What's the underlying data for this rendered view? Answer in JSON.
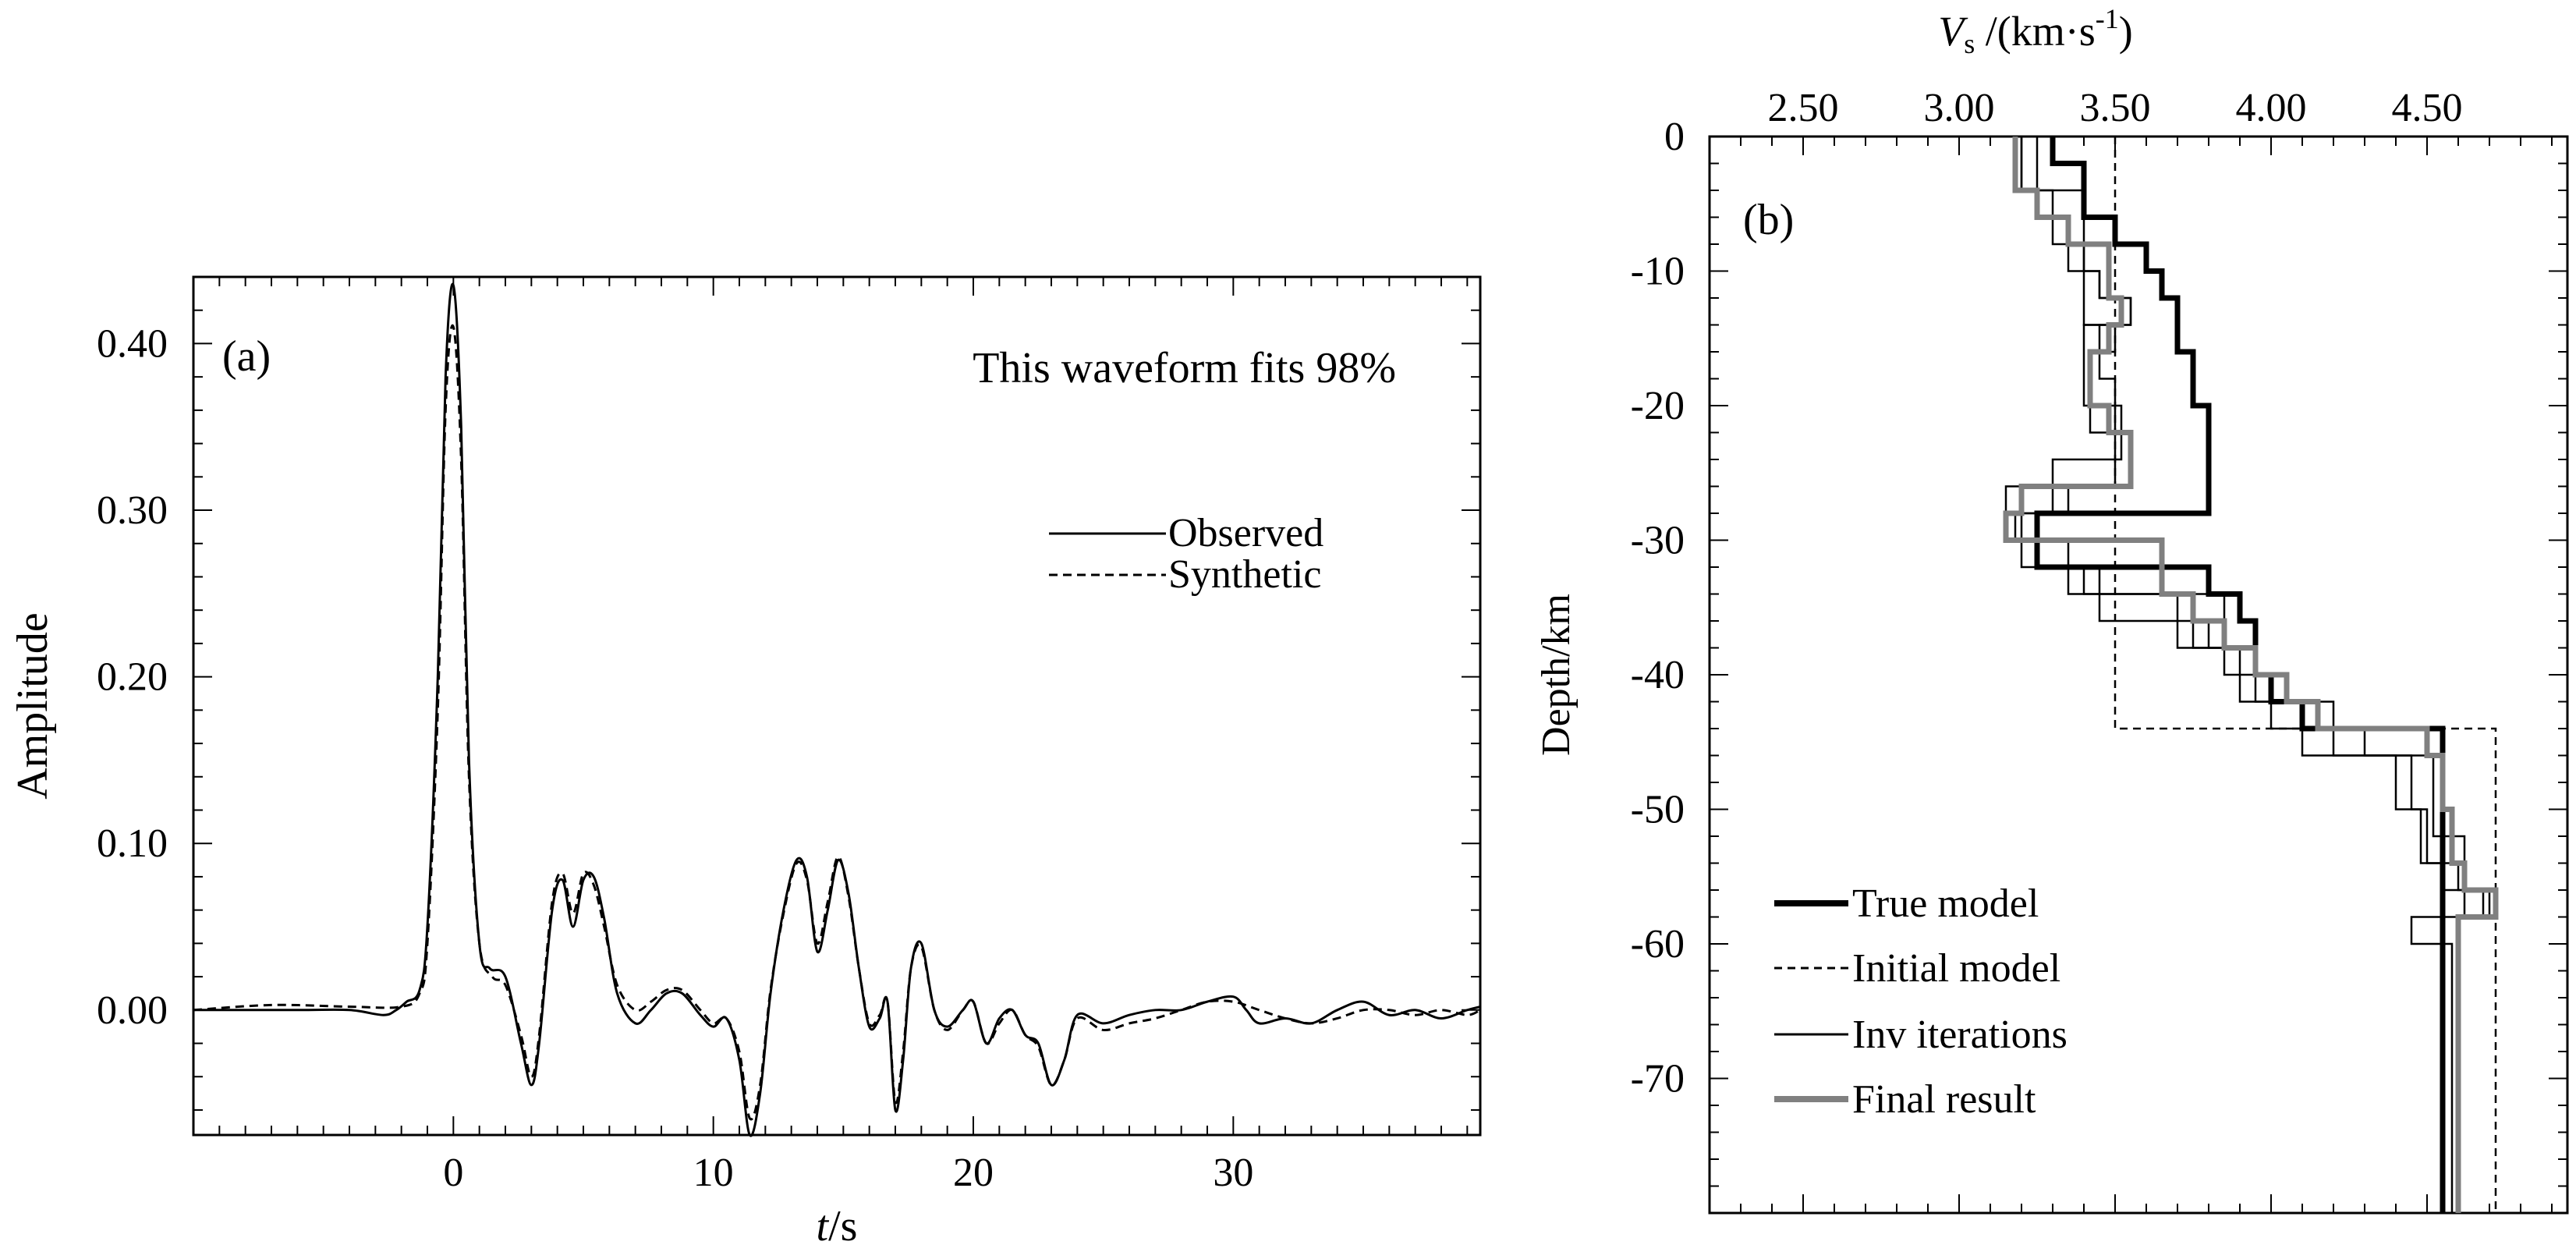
{
  "chart_data": [
    {
      "panel_label": "(a)",
      "type": "line",
      "annotation": "This waveform fits 98%",
      "xlabel": {
        "var": "t",
        "unit": "/s"
      },
      "ylabel": "Amplitude",
      "xlim": [
        -10,
        39.5
      ],
      "ylim": [
        -0.075,
        0.44
      ],
      "xticks": [
        0,
        10,
        20,
        30
      ],
      "xtick_labels": [
        "0",
        "10",
        "20",
        "30"
      ],
      "xtick_minor_step": 1,
      "yticks": [
        0.0,
        0.1,
        0.2,
        0.3,
        0.4
      ],
      "ytick_labels": [
        "0.00",
        "0.10",
        "0.20",
        "0.30",
        "0.40"
      ],
      "ytick_minor_step": 0.02,
      "legend_position": "right",
      "series": [
        {
          "name": "Observed",
          "style": "solid",
          "x": [
            -10,
            -6,
            -4,
            -2.7,
            -2.2,
            -1.8,
            -1.3,
            -1,
            -0.6,
            -0.3,
            0,
            0.3,
            0.6,
            1,
            1.4,
            2,
            2.6,
            3,
            3.3,
            3.8,
            4.2,
            4.6,
            5,
            5.4,
            5.8,
            6.3,
            7,
            7.6,
            8.2,
            8.8,
            9.5,
            10,
            10.5,
            11,
            11.4,
            11.8,
            12.2,
            12.7,
            13.2,
            13.6,
            14,
            14.4,
            14.8,
            15.2,
            15.6,
            16,
            16.4,
            16.7,
            17,
            17.3,
            17.6,
            18,
            18.5,
            19,
            19.6,
            20,
            20.5,
            21,
            21.5,
            22,
            22.5,
            23,
            23.5,
            24,
            25,
            26,
            27,
            28,
            29,
            30,
            30.5,
            31,
            32,
            33,
            34,
            35,
            36,
            37,
            38,
            39,
            39.5
          ],
          "y": [
            0.0,
            0.0,
            0.0,
            -0.003,
            0.0,
            0.005,
            0.012,
            0.05,
            0.2,
            0.38,
            0.435,
            0.35,
            0.15,
            0.04,
            0.025,
            0.02,
            -0.02,
            -0.045,
            -0.02,
            0.06,
            0.078,
            0.05,
            0.078,
            0.08,
            0.055,
            0.01,
            -0.008,
            0.0,
            0.01,
            0.01,
            -0.003,
            -0.01,
            -0.005,
            -0.03,
            -0.075,
            -0.05,
            0.01,
            0.06,
            0.09,
            0.08,
            0.035,
            0.06,
            0.09,
            0.07,
            0.025,
            -0.01,
            -0.005,
            0.005,
            -0.06,
            -0.03,
            0.025,
            0.04,
            0.0,
            -0.01,
            0.0,
            0.005,
            -0.02,
            -0.005,
            0.0,
            -0.015,
            -0.02,
            -0.045,
            -0.03,
            -0.003,
            -0.008,
            -0.003,
            0.0,
            0.0,
            0.005,
            0.008,
            0.0,
            -0.008,
            -0.005,
            -0.008,
            0.0,
            0.005,
            -0.003,
            0.0,
            -0.005,
            0.0,
            0.002
          ]
        },
        {
          "name": "Synthetic",
          "style": "dashed",
          "x": [
            -10,
            -7,
            -4,
            -2,
            -1.3,
            -1,
            -0.6,
            -0.3,
            0,
            0.3,
            0.6,
            1,
            1.5,
            2,
            2.6,
            3,
            3.3,
            3.8,
            4.2,
            4.6,
            5,
            5.4,
            5.8,
            6.3,
            7,
            7.6,
            8.2,
            8.8,
            9.5,
            10,
            10.5,
            11,
            11.4,
            11.8,
            12.2,
            12.7,
            13.2,
            13.6,
            14,
            14.4,
            14.8,
            15.2,
            15.6,
            16,
            16.4,
            16.7,
            17,
            17.3,
            17.6,
            18,
            18.5,
            19,
            19.6,
            20,
            20.5,
            21,
            21.5,
            22,
            22.5,
            23,
            23.5,
            24,
            25,
            26,
            27,
            28,
            29,
            30,
            31,
            32,
            33,
            34,
            35,
            36,
            37,
            38,
            39,
            39.5
          ],
          "y": [
            0.0,
            0.003,
            0.002,
            0.002,
            0.01,
            0.04,
            0.18,
            0.36,
            0.41,
            0.33,
            0.14,
            0.04,
            0.02,
            0.015,
            -0.015,
            -0.04,
            -0.015,
            0.065,
            0.082,
            0.058,
            0.082,
            0.075,
            0.05,
            0.015,
            0.0,
            0.005,
            0.012,
            0.012,
            0.0,
            -0.008,
            -0.005,
            -0.025,
            -0.065,
            -0.045,
            0.012,
            0.058,
            0.088,
            0.078,
            0.04,
            0.065,
            0.092,
            0.068,
            0.025,
            -0.008,
            -0.003,
            0.005,
            -0.055,
            -0.025,
            0.025,
            0.038,
            0.0,
            -0.012,
            0.0,
            0.005,
            -0.02,
            -0.008,
            0.0,
            -0.015,
            -0.022,
            -0.045,
            -0.03,
            -0.005,
            -0.012,
            -0.008,
            -0.005,
            0.0,
            0.005,
            0.005,
            0.0,
            -0.005,
            -0.008,
            -0.005,
            0.0,
            0.0,
            -0.003,
            0.0,
            -0.003,
            0.0
          ]
        }
      ]
    },
    {
      "panel_label": "(b)",
      "type": "line",
      "xlabel": {
        "var": "V",
        "sub": "s",
        "unit_prefix": " /(km·s",
        "unit_exp": "-1",
        "unit_suffix": ")"
      },
      "ylabel": "Depth/km",
      "xlim": [
        2.2,
        4.95
      ],
      "ylim": [
        -80,
        0
      ],
      "x_axis_position": "top",
      "xticks": [
        2.5,
        3.0,
        3.5,
        4.0,
        4.5
      ],
      "xtick_labels": [
        "2.50",
        "3.00",
        "3.50",
        "4.00",
        "4.50"
      ],
      "xtick_minor_step": 0.1,
      "yticks": [
        0,
        -10,
        -20,
        -30,
        -40,
        -50,
        -60,
        -70
      ],
      "ytick_labels": [
        "0",
        "-10",
        "-20",
        "-30",
        "-40",
        "-50",
        "-60",
        "-70"
      ],
      "ytick_minor_step": 2,
      "legend_position": "bottom-left",
      "series": [
        {
          "name": "True model",
          "style": "thick-black",
          "x": [
            3.3,
            3.3,
            3.4,
            3.4,
            3.5,
            3.5,
            3.6,
            3.6,
            3.65,
            3.65,
            3.7,
            3.7,
            3.75,
            3.75,
            3.8,
            3.8,
            3.25,
            3.25,
            3.8,
            3.8,
            3.9,
            3.9,
            3.95,
            3.95,
            4.0,
            4.0,
            4.1,
            4.1,
            4.55,
            4.55
          ],
          "y": [
            0,
            -2,
            -2,
            -6,
            -6,
            -8,
            -8,
            -10,
            -10,
            -12,
            -12,
            -16,
            -16,
            -20,
            -20,
            -28,
            -28,
            -32,
            -32,
            -34,
            -34,
            -36,
            -36,
            -40,
            -40,
            -42,
            -42,
            -44,
            -44,
            -80
          ]
        },
        {
          "name": "Initial model",
          "style": "dashed",
          "x": [
            3.5,
            3.5,
            4.72,
            4.72
          ],
          "y": [
            0,
            -44,
            -44,
            -80
          ]
        },
        {
          "name": "Inv iterations",
          "style": "thin-black",
          "steps": [
            {
              "x": [
                3.2,
                3.2,
                3.3,
                3.3,
                3.4,
                3.4,
                3.45,
                3.45,
                3.55,
                3.55,
                3.45,
                3.45,
                3.5,
                3.5,
                3.55,
                3.55,
                3.35,
                3.35,
                3.18,
                3.18,
                3.25,
                3.25,
                3.4,
                3.4,
                3.85,
                3.85,
                3.75,
                3.75,
                3.85,
                3.85,
                4.0,
                4.0,
                4.3,
                4.3,
                4.45,
                4.45,
                4.5,
                4.5,
                4.55,
                4.55,
                4.62,
                4.62,
                4.45,
                4.45,
                4.58,
                4.58
              ],
              "y": [
                0,
                -4,
                -4,
                -8,
                -8,
                -10,
                -10,
                -12,
                -12,
                -14,
                -14,
                -18,
                -18,
                -22,
                -22,
                -26,
                -26,
                -28,
                -28,
                -30,
                -30,
                -32,
                -32,
                -34,
                -34,
                -36,
                -36,
                -38,
                -38,
                -40,
                -40,
                -44,
                -44,
                -46,
                -46,
                -50,
                -50,
                -54,
                -54,
                -56,
                -56,
                -58,
                -58,
                -60,
                -60,
                -80
              ]
            },
            {
              "x": [
                3.25,
                3.25,
                3.35,
                3.35,
                3.45,
                3.45,
                3.55,
                3.55,
                3.4,
                3.4,
                3.52,
                3.52,
                3.3,
                3.3,
                3.2,
                3.2,
                3.45,
                3.45,
                3.8,
                3.8,
                3.95,
                3.95,
                4.1,
                4.1,
                4.4,
                4.4,
                4.48,
                4.48,
                4.6,
                4.6,
                4.68,
                4.68,
                4.6,
                4.6
              ],
              "y": [
                0,
                -6,
                -6,
                -10,
                -10,
                -12,
                -12,
                -14,
                -14,
                -20,
                -20,
                -24,
                -24,
                -28,
                -28,
                -32,
                -32,
                -36,
                -36,
                -38,
                -38,
                -42,
                -42,
                -46,
                -46,
                -50,
                -50,
                -54,
                -54,
                -56,
                -56,
                -58,
                -58,
                -80
              ]
            },
            {
              "x": [
                3.2,
                3.2,
                3.4,
                3.4,
                3.5,
                3.5,
                3.42,
                3.42,
                3.5,
                3.5,
                3.15,
                3.15,
                3.35,
                3.35,
                3.7,
                3.7,
                3.9,
                3.9,
                4.2,
                4.2,
                4.52,
                4.52,
                4.62,
                4.62,
                4.7,
                4.7,
                4.6,
                4.6
              ],
              "y": [
                0,
                -4,
                -4,
                -14,
                -14,
                -16,
                -16,
                -22,
                -22,
                -26,
                -26,
                -30,
                -30,
                -34,
                -34,
                -38,
                -38,
                -42,
                -42,
                -46,
                -46,
                -52,
                -52,
                -56,
                -56,
                -58,
                -58,
                -80
              ]
            }
          ]
        },
        {
          "name": "Final result",
          "style": "thick-gray",
          "x": [
            3.18,
            3.18,
            3.25,
            3.25,
            3.35,
            3.35,
            3.48,
            3.48,
            3.52,
            3.52,
            3.48,
            3.48,
            3.42,
            3.42,
            3.48,
            3.48,
            3.55,
            3.55,
            3.5,
            3.5,
            3.2,
            3.2,
            3.15,
            3.15,
            3.65,
            3.65,
            3.75,
            3.75,
            3.85,
            3.85,
            3.95,
            3.95,
            4.05,
            4.05,
            4.15,
            4.15,
            4.5,
            4.5,
            4.55,
            4.55,
            4.58,
            4.58,
            4.62,
            4.62,
            4.72,
            4.72,
            4.6,
            4.6
          ],
          "y": [
            0,
            -4,
            -4,
            -6,
            -6,
            -8,
            -8,
            -12,
            -12,
            -14,
            -14,
            -16,
            -16,
            -20,
            -20,
            -22,
            -22,
            -26,
            -26,
            -26,
            -26,
            -28,
            -28,
            -30,
            -30,
            -34,
            -34,
            -36,
            -36,
            -38,
            -38,
            -40,
            -40,
            -42,
            -42,
            -44,
            -44,
            -46,
            -46,
            -50,
            -50,
            -54,
            -54,
            -56,
            -56,
            -58,
            -58,
            -80
          ]
        }
      ]
    }
  ]
}
